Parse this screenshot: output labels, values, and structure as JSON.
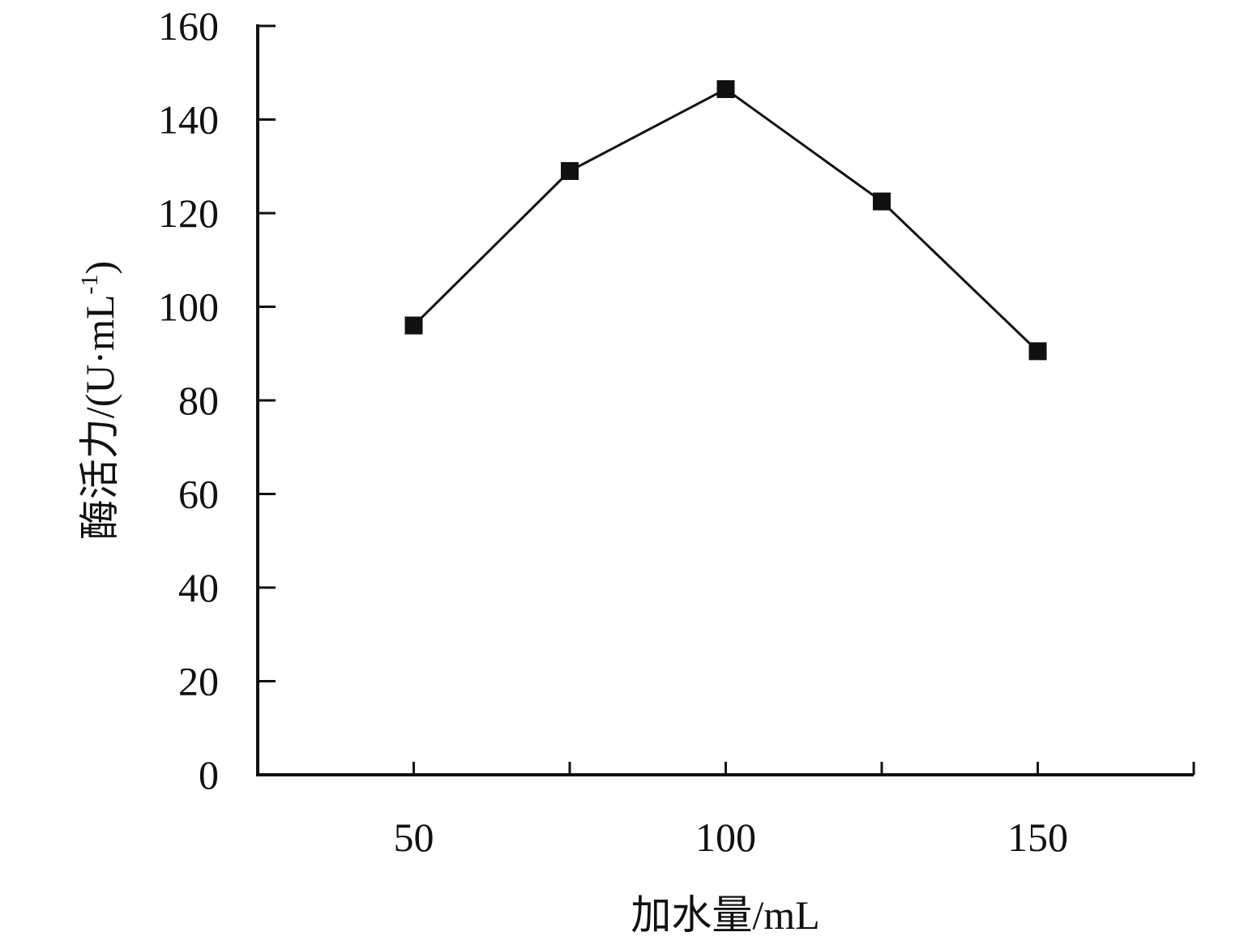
{
  "chart_data": {
    "type": "line",
    "xlabel": "加水量/mL",
    "ylabel_main": "酶活力/(U·mL",
    "ylabel_sup": "-1",
    "ylabel_close": ")",
    "xlim": [
      25,
      175
    ],
    "ylim": [
      0,
      160
    ],
    "x_ticks": [
      50,
      75,
      100,
      125,
      150,
      175
    ],
    "x_tick_labels": [
      "50",
      "100",
      "150"
    ],
    "x_tick_label_values": [
      50,
      100,
      150
    ],
    "y_ticks": [
      0,
      20,
      40,
      60,
      80,
      100,
      120,
      140,
      160
    ],
    "y_tick_labels": [
      "0",
      "20",
      "40",
      "60",
      "80",
      "100",
      "120",
      "140",
      "160"
    ],
    "grid": false,
    "marker": "square",
    "series": [
      {
        "x": [
          50,
          75,
          100,
          125,
          150
        ],
        "values": [
          96,
          129,
          146.5,
          122.5,
          90.5
        ]
      }
    ]
  }
}
